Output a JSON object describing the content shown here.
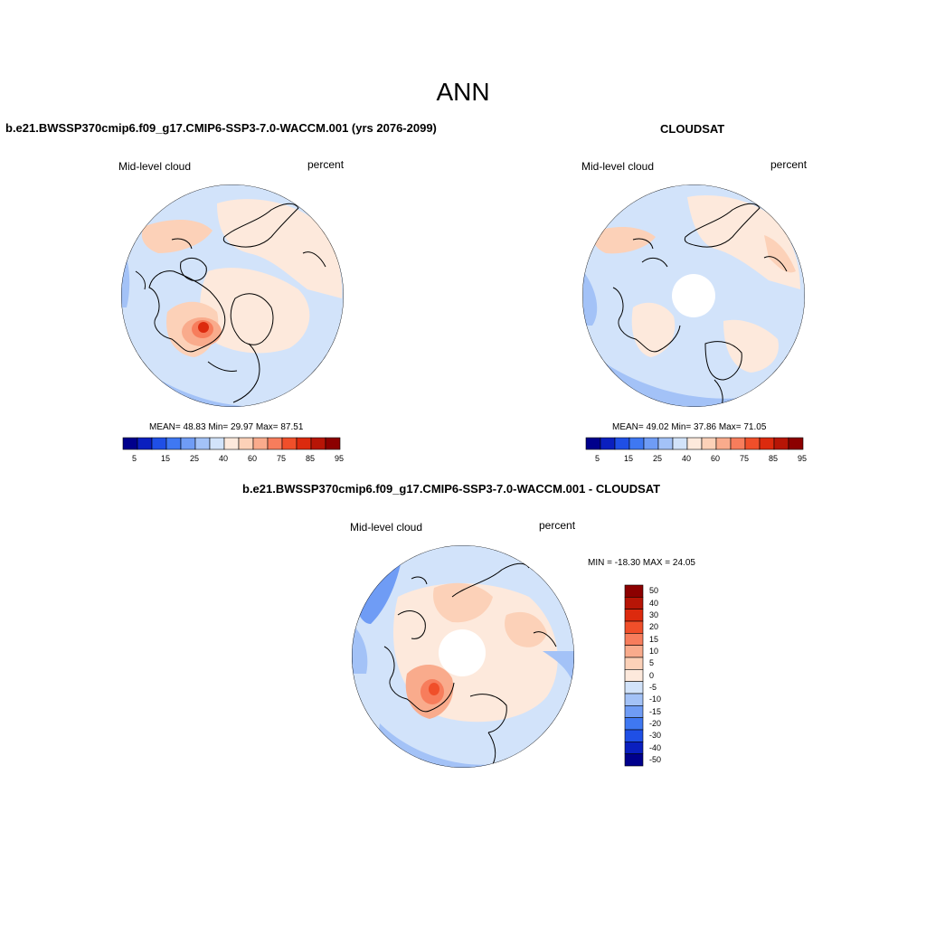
{
  "figure_title": "ANN",
  "panels": {
    "model": {
      "title": "b.e21.BWSSP370cmip6.f09_g17.CMIP6-SSP3-7.0-WACCM.001 (yrs 2076-2099)",
      "left_label": "Mid-level cloud",
      "right_label": "percent",
      "stats": "MEAN=  48.83  Min=  29.97  Max=  87.51"
    },
    "obs": {
      "title": "CLOUDSAT",
      "left_label": "Mid-level cloud",
      "right_label": "percent",
      "stats": "MEAN=  49.02  Min=  37.86  Max=  71.05"
    },
    "diff": {
      "title": "b.e21.BWSSP370cmip6.f09_g17.CMIP6-SSP3-7.0-WACCM.001 - CLOUDSAT",
      "left_label": "Mid-level cloud",
      "right_label": "percent",
      "stats": "MIN = -18.30 MAX =  24.05"
    }
  },
  "abs_colorbar": {
    "colors": [
      "#00008c",
      "#0a1fbf",
      "#1f4fe6",
      "#3f78f2",
      "#6f9cf5",
      "#a3c2f7",
      "#d2e3fa",
      "#fde9dc",
      "#fcd1b8",
      "#f9ab8c",
      "#f77d5c",
      "#f04f2a",
      "#dc2a0e",
      "#b71506",
      "#8c0000"
    ],
    "tick_labels": [
      "5",
      "15",
      "25",
      "40",
      "60",
      "75",
      "85",
      "95"
    ]
  },
  "diff_colorbar": {
    "colors": [
      "#8c0000",
      "#b71506",
      "#dc2a0e",
      "#f04f2a",
      "#f77d5c",
      "#f9ab8c",
      "#fcd1b8",
      "#fde9dc",
      "#d2e3fa",
      "#a3c2f7",
      "#6f9cf5",
      "#3f78f2",
      "#1f4fe6",
      "#0a1fbf",
      "#00008c"
    ],
    "tick_labels": [
      "50",
      "40",
      "30",
      "20",
      "15",
      "10",
      "5",
      "0",
      "-5",
      "-10",
      "-15",
      "-20",
      "-30",
      "-40",
      "-50"
    ]
  },
  "map_colors": {
    "base_blue": "#d2e3fa",
    "mid_blue": "#a3c2f7",
    "deep_blue": "#6f9cf5",
    "peach": "#fde9dc",
    "salmon": "#fcd1b8",
    "orange": "#f77d5c",
    "red": "#dc2a0e",
    "coast": "#000000",
    "missing": "#ffffff"
  }
}
